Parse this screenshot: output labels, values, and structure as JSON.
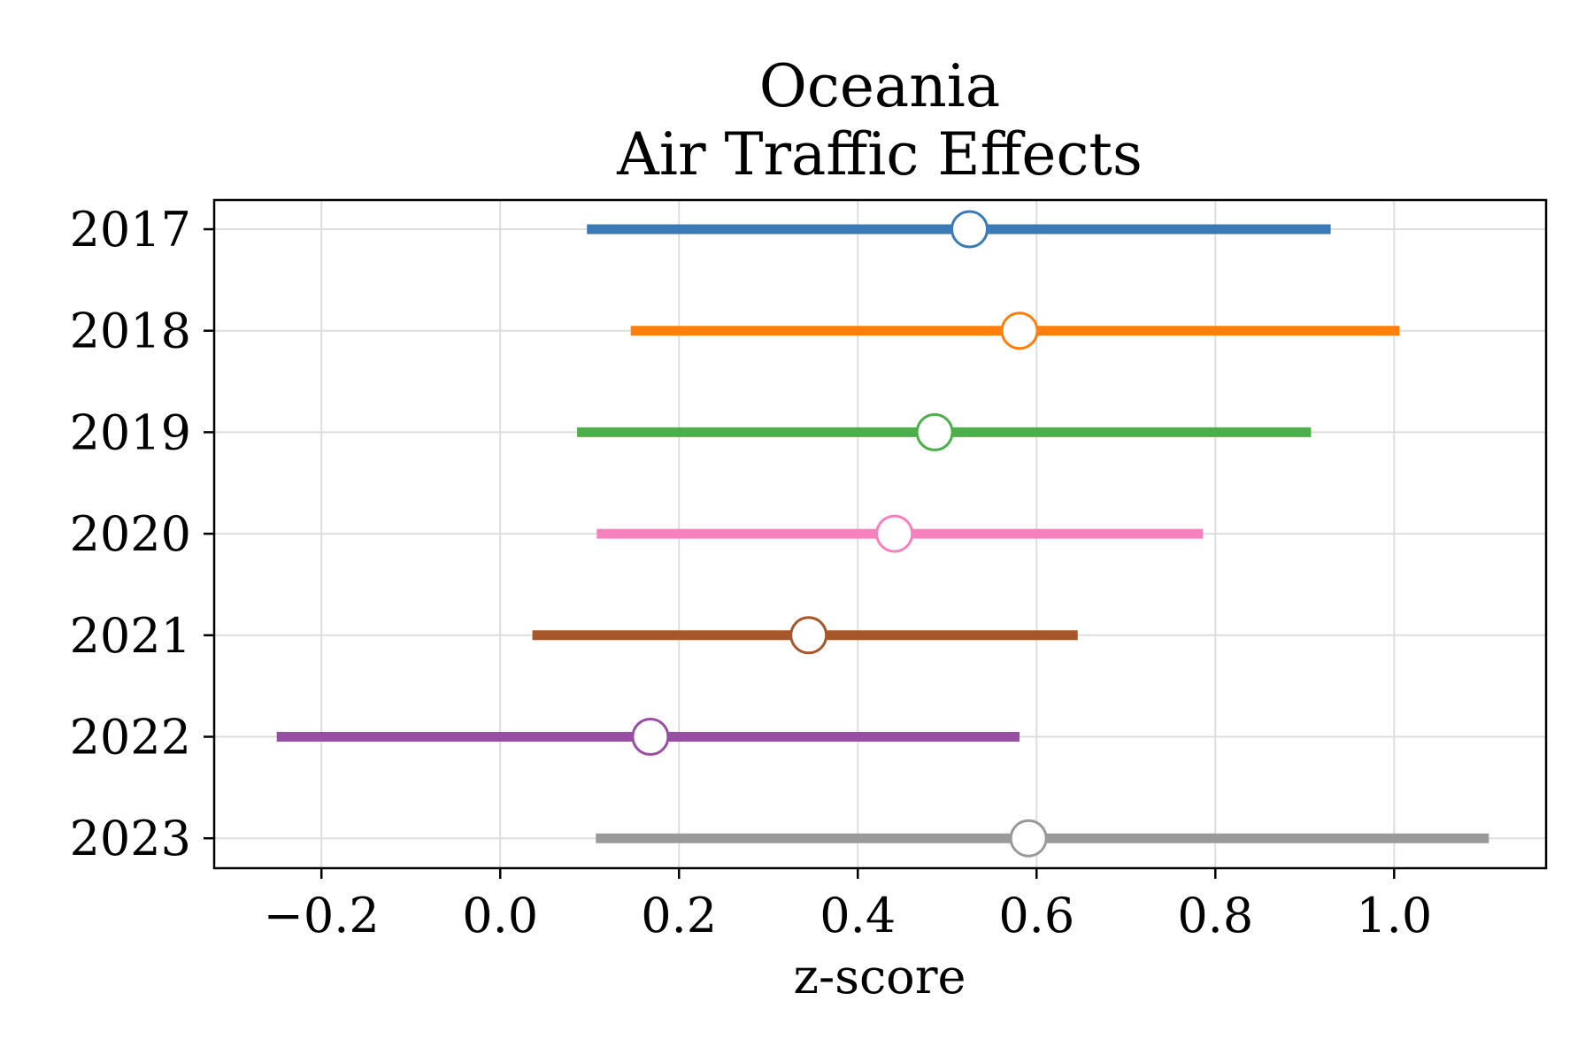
{
  "chart_data": {
    "type": "forest",
    "title": "Oceania",
    "subtitle": "Air Traffic Effects",
    "xlabel": "z-score",
    "ylabel": "",
    "xlim": [
      -0.32,
      1.17
    ],
    "x_ticks": [
      -0.2,
      0.0,
      0.2,
      0.4,
      0.6,
      0.8,
      1.0
    ],
    "x_tick_labels": [
      "−0.2",
      "0.0",
      "0.2",
      "0.4",
      "0.6",
      "0.8",
      "1.0"
    ],
    "grid": true,
    "categories": [
      "2017",
      "2018",
      "2019",
      "2020",
      "2021",
      "2022",
      "2023"
    ],
    "estimates": [
      {
        "year": "2017",
        "estimate": 0.525,
        "lower": 0.097,
        "upper": 0.929,
        "color": "#3a7ab8"
      },
      {
        "year": "2018",
        "estimate": 0.581,
        "lower": 0.146,
        "upper": 1.006,
        "color": "#ff7f0e"
      },
      {
        "year": "2019",
        "estimate": 0.486,
        "lower": 0.086,
        "upper": 0.907,
        "color": "#4daf4a"
      },
      {
        "year": "2020",
        "estimate": 0.441,
        "lower": 0.108,
        "upper": 0.786,
        "color": "#f781bf"
      },
      {
        "year": "2021",
        "estimate": 0.345,
        "lower": 0.036,
        "upper": 0.646,
        "color": "#a65628"
      },
      {
        "year": "2022",
        "estimate": 0.168,
        "lower": -0.25,
        "upper": 0.581,
        "color": "#984ea3"
      },
      {
        "year": "2023",
        "estimate": 0.591,
        "lower": 0.107,
        "upper": 1.106,
        "color": "#999999"
      }
    ]
  }
}
